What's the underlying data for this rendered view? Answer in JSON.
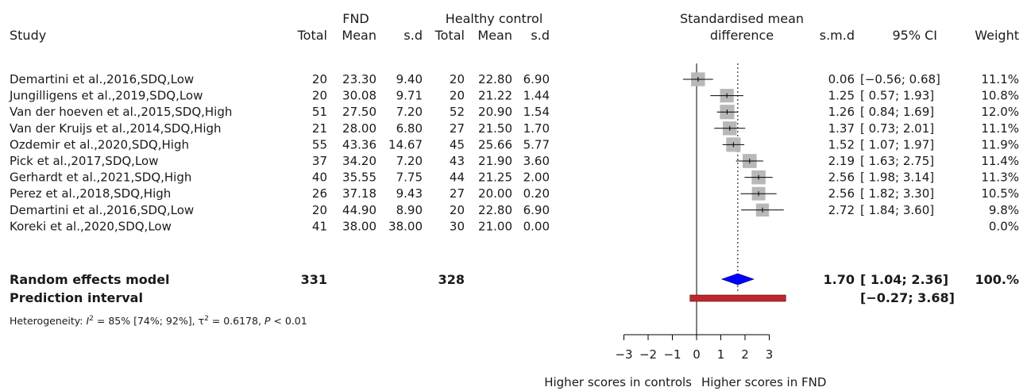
{
  "headers": {
    "study": "Study",
    "group1": "FND",
    "group2": "Healthy control",
    "total": "Total",
    "mean": "Mean",
    "sd": "s.d",
    "plot_line1": "Standardised mean",
    "plot_line2": "difference",
    "smd": "s.m.d",
    "ci": "95% CI",
    "weight": "Weight"
  },
  "chart_data": {
    "type": "forest",
    "xlim": [
      -3,
      3
    ],
    "xticks": [
      "−3",
      "−2",
      "−1",
      "0",
      "1",
      "2",
      "3"
    ],
    "xtick_values": [
      -3,
      -2,
      -1,
      0,
      1,
      2,
      3
    ],
    "xlabel_left": "Higher scores in controls",
    "xlabel_right": "Higher scores in FND",
    "studies": [
      {
        "study": "Demartini et al.,2016,SDQ,Low",
        "n1": "20",
        "m1": "23.30",
        "sd1": "9.40",
        "n2": "20",
        "m2": "22.80",
        "sd2": "6.90",
        "smd": 0.06,
        "lo": -0.56,
        "hi": 0.68,
        "smd_text": "0.06",
        "ci_text": "[−0.56; 0.68]",
        "weight_text": "11.1%",
        "weight": 11.1
      },
      {
        "study": "Jungilligens et al.,2019,SDQ,Low",
        "n1": "20",
        "m1": "30.08",
        "sd1": "9.71",
        "n2": "20",
        "m2": "21.22",
        "sd2": "1.44",
        "smd": 1.25,
        "lo": 0.57,
        "hi": 1.93,
        "smd_text": "1.25",
        "ci_text": "[ 0.57; 1.93]",
        "weight_text": "10.8%",
        "weight": 10.8
      },
      {
        "study": "Van der hoeven et al.,2015,SDQ,High",
        "n1": "51",
        "m1": "27.50",
        "sd1": "7.20",
        "n2": "52",
        "m2": "20.90",
        "sd2": "1.54",
        "smd": 1.26,
        "lo": 0.84,
        "hi": 1.69,
        "smd_text": "1.26",
        "ci_text": "[ 0.84; 1.69]",
        "weight_text": "12.0%",
        "weight": 12.0
      },
      {
        "study": "Van der Kruijs et al.,2014,SDQ,High",
        "n1": "21",
        "m1": "28.00",
        "sd1": "6.80",
        "n2": "27",
        "m2": "21.50",
        "sd2": "1.70",
        "smd": 1.37,
        "lo": 0.73,
        "hi": 2.01,
        "smd_text": "1.37",
        "ci_text": "[ 0.73; 2.01]",
        "weight_text": "11.1%",
        "weight": 11.1
      },
      {
        "study": "Ozdemir et al.,2020,SDQ,High",
        "n1": "55",
        "m1": "43.36",
        "sd1": "14.67",
        "n2": "45",
        "m2": "25.66",
        "sd2": "5.77",
        "smd": 1.52,
        "lo": 1.07,
        "hi": 1.97,
        "smd_text": "1.52",
        "ci_text": "[ 1.07; 1.97]",
        "weight_text": "11.9%",
        "weight": 11.9
      },
      {
        "study": "Pick et al.,2017,SDQ,Low",
        "n1": "37",
        "m1": "34.20",
        "sd1": "7.20",
        "n2": "43",
        "m2": "21.90",
        "sd2": "3.60",
        "smd": 2.19,
        "lo": 1.63,
        "hi": 2.75,
        "smd_text": "2.19",
        "ci_text": "[ 1.63; 2.75]",
        "weight_text": "11.4%",
        "weight": 11.4
      },
      {
        "study": "Gerhardt et al.,2021,SDQ,High",
        "n1": "40",
        "m1": "35.55",
        "sd1": "7.75",
        "n2": "44",
        "m2": "21.25",
        "sd2": "2.00",
        "smd": 2.56,
        "lo": 1.98,
        "hi": 3.14,
        "smd_text": "2.56",
        "ci_text": "[ 1.98; 3.14]",
        "weight_text": "11.3%",
        "weight": 11.3
      },
      {
        "study": "Perez et al.,2018,SDQ,High",
        "n1": "26",
        "m1": "37.18",
        "sd1": "9.43",
        "n2": "27",
        "m2": "20.00",
        "sd2": "0.20",
        "smd": 2.56,
        "lo": 1.82,
        "hi": 3.3,
        "smd_text": "2.56",
        "ci_text": "[ 1.82; 3.30]",
        "weight_text": "10.5%",
        "weight": 10.5
      },
      {
        "study": "Demartini et al.,2016,SDQ,Low",
        "n1": "20",
        "m1": "44.90",
        "sd1": "8.90",
        "n2": "20",
        "m2": "22.80",
        "sd2": "6.90",
        "smd": 2.72,
        "lo": 1.84,
        "hi": 3.6,
        "smd_text": "2.72",
        "ci_text": "[ 1.84; 3.60]",
        "weight_text": "9.8%",
        "weight": 9.8
      },
      {
        "study": "Koreki et al.,2020,SDQ,Low",
        "n1": "41",
        "m1": "38.00",
        "sd1": "38.00",
        "n2": "30",
        "m2": "21.00",
        "sd2": "0.00",
        "smd": null,
        "lo": null,
        "hi": null,
        "smd_text": "",
        "ci_text": "",
        "weight_text": "0.0%",
        "weight": 0.0
      }
    ],
    "random_effects": {
      "label": "Random effects model",
      "n1": "331",
      "n2": "328",
      "smd": 1.7,
      "lo": 1.04,
      "hi": 2.36,
      "smd_text": "1.70",
      "ci_text": "[ 1.04; 2.36]",
      "weight_text": "100.%"
    },
    "prediction_interval": {
      "label": "Prediction interval",
      "lo": -0.27,
      "hi": 3.68,
      "ci_text": "[−0.27; 3.68]"
    },
    "heterogeneity": {
      "prefix": "Heterogeneity: ",
      "i2_symbol": "I",
      "i2_text": " = 85% [74%; 92%], τ",
      "tau2_text": " = 0.6178, ",
      "p_symbol": "P",
      "p_text": " < 0.01"
    },
    "colors": {
      "square": "#b8b8b8",
      "diamond": "#0000ff",
      "prediction_bar": "#c0262d",
      "line": "#000000"
    }
  }
}
